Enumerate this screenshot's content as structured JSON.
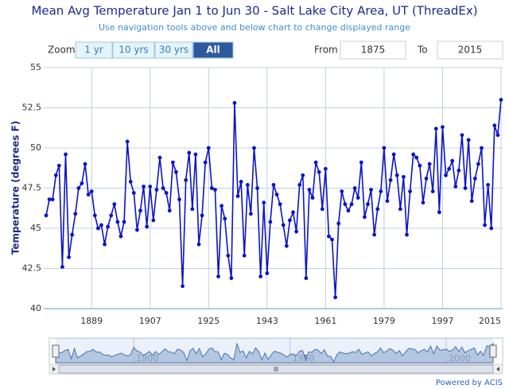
{
  "chart_data": {
    "type": "line",
    "title": "Mean Avg Temperature Jan 1 to Jun 30 - Salt Lake City Area, UT (ThreadEx)",
    "subtitle": "Use navigation tools above and below chart to change displayed range",
    "y_label": "Temperature (degrees F)",
    "color": "#0a14c8",
    "x": [
      1875,
      1876,
      1877,
      1878,
      1879,
      1880,
      1881,
      1882,
      1883,
      1884,
      1885,
      1886,
      1887,
      1888,
      1889,
      1890,
      1891,
      1892,
      1893,
      1894,
      1895,
      1896,
      1897,
      1898,
      1899,
      1900,
      1901,
      1902,
      1903,
      1904,
      1905,
      1906,
      1907,
      1908,
      1909,
      1910,
      1911,
      1912,
      1913,
      1914,
      1915,
      1916,
      1917,
      1918,
      1919,
      1920,
      1921,
      1922,
      1923,
      1924,
      1925,
      1926,
      1927,
      1928,
      1929,
      1930,
      1931,
      1932,
      1933,
      1934,
      1935,
      1936,
      1937,
      1938,
      1939,
      1940,
      1941,
      1942,
      1943,
      1944,
      1945,
      1946,
      1947,
      1948,
      1949,
      1950,
      1951,
      1952,
      1953,
      1954,
      1955,
      1956,
      1957,
      1958,
      1959,
      1960,
      1961,
      1962,
      1963,
      1964,
      1965,
      1966,
      1967,
      1968,
      1969,
      1970,
      1971,
      1972,
      1973,
      1974,
      1975,
      1976,
      1977,
      1978,
      1979,
      1980,
      1981,
      1982,
      1983,
      1984,
      1985,
      1986,
      1987,
      1988,
      1989,
      1990,
      1991,
      1992,
      1993,
      1994,
      1995,
      1996,
      1997,
      1998,
      1999,
      2000,
      2001,
      2002,
      2003,
      2004,
      2005,
      2006,
      2007,
      2008,
      2009,
      2010,
      2011,
      2012,
      2013,
      2014,
      2015
    ],
    "values": [
      45.8,
      46.8,
      46.8,
      48.3,
      48.9,
      42.6,
      49.6,
      43.2,
      44.6,
      45.9,
      47.5,
      47.8,
      49.0,
      47.1,
      47.3,
      45.8,
      45.0,
      45.2,
      44.0,
      45.1,
      45.8,
      46.5,
      45.4,
      44.5,
      45.4,
      50.4,
      47.9,
      47.2,
      44.9,
      46.1,
      47.6,
      45.1,
      47.6,
      45.5,
      47.4,
      49.4,
      47.5,
      47.2,
      46.1,
      49.1,
      48.5,
      46.8,
      41.4,
      48.0,
      49.7,
      46.2,
      49.6,
      44.0,
      45.8,
      49.1,
      50.0,
      47.5,
      47.4,
      42.0,
      46.4,
      45.6,
      43.3,
      41.9,
      52.8,
      47.0,
      47.9,
      43.3,
      47.7,
      45.9,
      50.0,
      47.5,
      42.0,
      46.6,
      42.2,
      45.4,
      47.7,
      47.1,
      46.5,
      45.2,
      43.9,
      45.5,
      46.0,
      44.8,
      47.7,
      48.3,
      41.9,
      47.4,
      46.9,
      49.1,
      48.5,
      46.2,
      48.7,
      44.5,
      44.3,
      40.7,
      45.3,
      47.3,
      46.5,
      46.1,
      46.5,
      47.5,
      46.9,
      49.1,
      45.7,
      46.5,
      47.4,
      44.6,
      46.2,
      47.3,
      50.0,
      46.7,
      48.0,
      49.6,
      48.3,
      46.2,
      48.2,
      44.6,
      47.3,
      49.6,
      49.4,
      48.9,
      46.6,
      48.1,
      49.0,
      47.3,
      51.2,
      46.0,
      51.3,
      48.3,
      48.7,
      49.2,
      47.6,
      48.6,
      50.8,
      47.5,
      50.5,
      46.7,
      48.1,
      49.0,
      50.0,
      45.2,
      47.7,
      45.0,
      51.4,
      50.8,
      53.0
    ],
    "xlim": [
      1875,
      2015
    ],
    "xticks": [
      1889,
      1907,
      1925,
      1943,
      1961,
      1979,
      1997,
      2015
    ],
    "ylim": [
      40,
      55
    ],
    "yticks": [
      40,
      42.5,
      45,
      47.5,
      50,
      52.5,
      55
    ],
    "grid": true,
    "navigator_xticks": [
      1900,
      1950,
      2000
    ],
    "range_selector": {
      "zoom_label": "Zoom",
      "buttons": [
        "1 yr",
        "10 yrs",
        "30 yrs",
        "All"
      ],
      "selected": 3,
      "from_label": "From",
      "from": "1875",
      "to_label": "To",
      "to": "2015"
    },
    "credit": "Powered by ACIS"
  }
}
